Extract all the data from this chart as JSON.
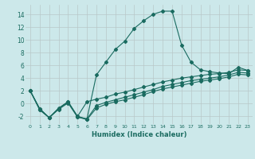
{
  "xlabel": "Humidex (Indice chaleur)",
  "bg_color": "#cce8ea",
  "grid_color": "#b8c8c8",
  "line_color": "#1a6b60",
  "xlim": [
    -0.5,
    23.5
  ],
  "ylim": [
    -3.2,
    15.5
  ],
  "xticks": [
    0,
    1,
    2,
    3,
    4,
    5,
    6,
    7,
    8,
    9,
    10,
    11,
    12,
    13,
    14,
    15,
    16,
    17,
    18,
    19,
    20,
    21,
    22,
    23
  ],
  "yticks": [
    -2,
    0,
    2,
    4,
    6,
    8,
    10,
    12,
    14
  ],
  "series1_x": [
    0,
    1,
    2,
    3,
    4,
    5,
    6,
    7,
    8,
    9,
    10,
    11,
    12,
    13,
    14,
    15,
    16,
    17,
    18,
    19,
    20,
    21,
    22,
    23
  ],
  "series1_y": [
    2.0,
    -1.0,
    -2.2,
    -0.8,
    0.3,
    -2.0,
    -2.4,
    4.5,
    6.5,
    8.5,
    9.8,
    11.8,
    13.0,
    14.0,
    14.5,
    14.5,
    9.2,
    6.5,
    5.3,
    5.0,
    4.8,
    4.7,
    5.7,
    5.2
  ],
  "series2_x": [
    0,
    1,
    2,
    3,
    4,
    5,
    6,
    7,
    8,
    9,
    10,
    11,
    12,
    13,
    14,
    15,
    16,
    17,
    18,
    19,
    20,
    21,
    22,
    23
  ],
  "series2_y": [
    2.0,
    -0.8,
    -2.2,
    -0.7,
    0.3,
    -2.0,
    0.3,
    0.7,
    1.0,
    1.5,
    1.8,
    2.2,
    2.6,
    3.0,
    3.4,
    3.7,
    4.0,
    4.2,
    4.4,
    4.6,
    4.7,
    4.9,
    5.3,
    5.2
  ],
  "series3_x": [
    0,
    1,
    2,
    3,
    4,
    5,
    6,
    7,
    8,
    9,
    10,
    11,
    12,
    13,
    14,
    15,
    16,
    17,
    18,
    19,
    20,
    21,
    22,
    23
  ],
  "series3_y": [
    2.0,
    -0.8,
    -2.2,
    -0.8,
    0.2,
    -2.1,
    -2.4,
    -0.3,
    0.2,
    0.6,
    1.0,
    1.4,
    1.8,
    2.2,
    2.7,
    3.0,
    3.3,
    3.6,
    3.8,
    4.0,
    4.2,
    4.5,
    4.9,
    4.8
  ],
  "series4_x": [
    0,
    1,
    2,
    3,
    4,
    5,
    6,
    7,
    8,
    9,
    10,
    11,
    12,
    13,
    14,
    15,
    16,
    17,
    18,
    19,
    20,
    21,
    22,
    23
  ],
  "series4_y": [
    2.0,
    -0.9,
    -2.2,
    -0.9,
    0.1,
    -2.1,
    -2.5,
    -0.7,
    -0.1,
    0.3,
    0.6,
    1.0,
    1.4,
    1.9,
    2.3,
    2.6,
    2.9,
    3.2,
    3.5,
    3.7,
    3.9,
    4.2,
    4.6,
    4.5
  ]
}
